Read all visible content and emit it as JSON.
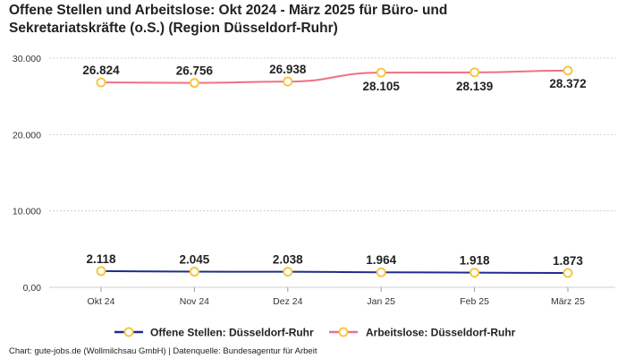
{
  "title_line1": "Offene Stellen und Arbeitslose: Okt 2024 - März 2025 für Büro- und",
  "title_line2": "Sekretariatskräfte (o.S.) (Region Düsseldorf-Ruhr)",
  "footer": "Chart: gute-jobs.de (Wollmilchsau GmbH) | Datenquelle: Bundesagentur für Arbeit",
  "chart_data": {
    "type": "line",
    "categories": [
      "Okt 24",
      "Nov 24",
      "Dez 24",
      "Jan 25",
      "Feb 25",
      "März 25"
    ],
    "ylim": [
      0,
      30000
    ],
    "yticks": [
      0,
      10000,
      20000,
      30000
    ],
    "ytick_labels": [
      "0,00",
      "10.000",
      "20.000",
      "30.000"
    ],
    "grid": true,
    "legend_position": "bottom",
    "series": [
      {
        "name": "Offene Stellen: Düsseldorf-Ruhr",
        "values": [
          2118,
          2045,
          2038,
          1964,
          1918,
          1873
        ],
        "labels": [
          "2.118",
          "2.045",
          "2.038",
          "1.964",
          "1.918",
          "1.873"
        ],
        "color": "#1f2d8a",
        "marker_color": "#f5c842"
      },
      {
        "name": "Arbeitslose: Düsseldorf-Ruhr",
        "values": [
          26824,
          26756,
          26938,
          28105,
          28139,
          28372
        ],
        "labels": [
          "26.824",
          "26.756",
          "26.938",
          "28.105",
          "28.139",
          "28.372"
        ],
        "color": "#f07083",
        "marker_color": "#f5c842"
      }
    ]
  }
}
